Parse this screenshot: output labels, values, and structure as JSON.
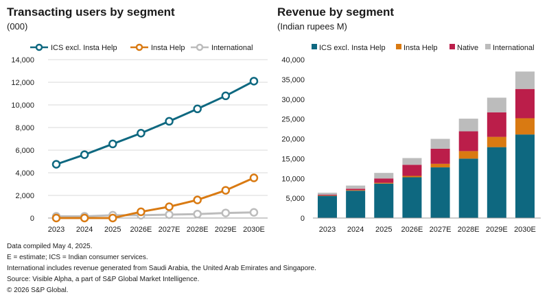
{
  "colors": {
    "ics": "#0e6880",
    "insta": "#d97a12",
    "native": "#bb1e4a",
    "international": "#bcbcbc",
    "grid": "#d9d9d9",
    "axis": "#9a9a9a"
  },
  "chart_data": [
    {
      "type": "line",
      "title": "Transacting users by segment",
      "subtitle": "(000)",
      "categories": [
        "2023",
        "2024",
        "2025",
        "2026E",
        "2027E",
        "2028E",
        "2029E",
        "2030E"
      ],
      "ylim": [
        0,
        14000
      ],
      "yticks": [
        "0",
        "2,000",
        "4,000",
        "6,000",
        "8,000",
        "10,000",
        "12,000",
        "14,000"
      ],
      "grid": true,
      "legend_position": "top",
      "series": [
        {
          "name": "ICS excl. Insta Help",
          "color": "#0e6880",
          "values": [
            4750,
            5600,
            6550,
            7500,
            8550,
            9650,
            10800,
            12100
          ]
        },
        {
          "name": "Insta Help",
          "color": "#d97a12",
          "values": [
            0,
            0,
            0,
            550,
            1000,
            1600,
            2450,
            3550
          ]
        },
        {
          "name": "International",
          "color": "#bcbcbc",
          "values": [
            150,
            150,
            250,
            250,
            300,
            350,
            450,
            500
          ]
        }
      ]
    },
    {
      "type": "bar",
      "stacked": true,
      "title": "Revenue by segment",
      "subtitle": "(Indian rupees M)",
      "categories": [
        "2023",
        "2024",
        "2025",
        "2026E",
        "2027E",
        "2028E",
        "2029E",
        "2030E"
      ],
      "ylim": [
        0,
        40000
      ],
      "yticks": [
        "0",
        "5,000",
        "10,000",
        "15,000",
        "20,000",
        "25,000",
        "30,000",
        "35,000",
        "40,000"
      ],
      "grid": false,
      "legend_position": "top",
      "series": [
        {
          "name": "ICS excl. Insta Help",
          "color": "#0e6880",
          "values": [
            5600,
            6900,
            8700,
            10300,
            12800,
            15000,
            17900,
            21100
          ]
        },
        {
          "name": "Insta Help",
          "color": "#d97a12",
          "values": [
            100,
            150,
            200,
            350,
            900,
            1900,
            2600,
            4100
          ]
        },
        {
          "name": "Native",
          "color": "#bb1e4a",
          "values": [
            200,
            350,
            1100,
            2800,
            3800,
            5000,
            6200,
            7400
          ]
        },
        {
          "name": "International",
          "color": "#bcbcbc",
          "values": [
            500,
            800,
            1400,
            1700,
            2500,
            3200,
            3700,
            4400
          ]
        }
      ]
    }
  ],
  "footnotes": [
    "Data compiled May 4, 2025.",
    "E = estimate; ICS = Indian consumer services.",
    "International includes revenue generated from Saudi Arabia, the United Arab Emirates and Singapore.",
    "Source: Visible Alpha, a part of S&P Global Market Intelligence.",
    "© 2026 S&P Global."
  ]
}
